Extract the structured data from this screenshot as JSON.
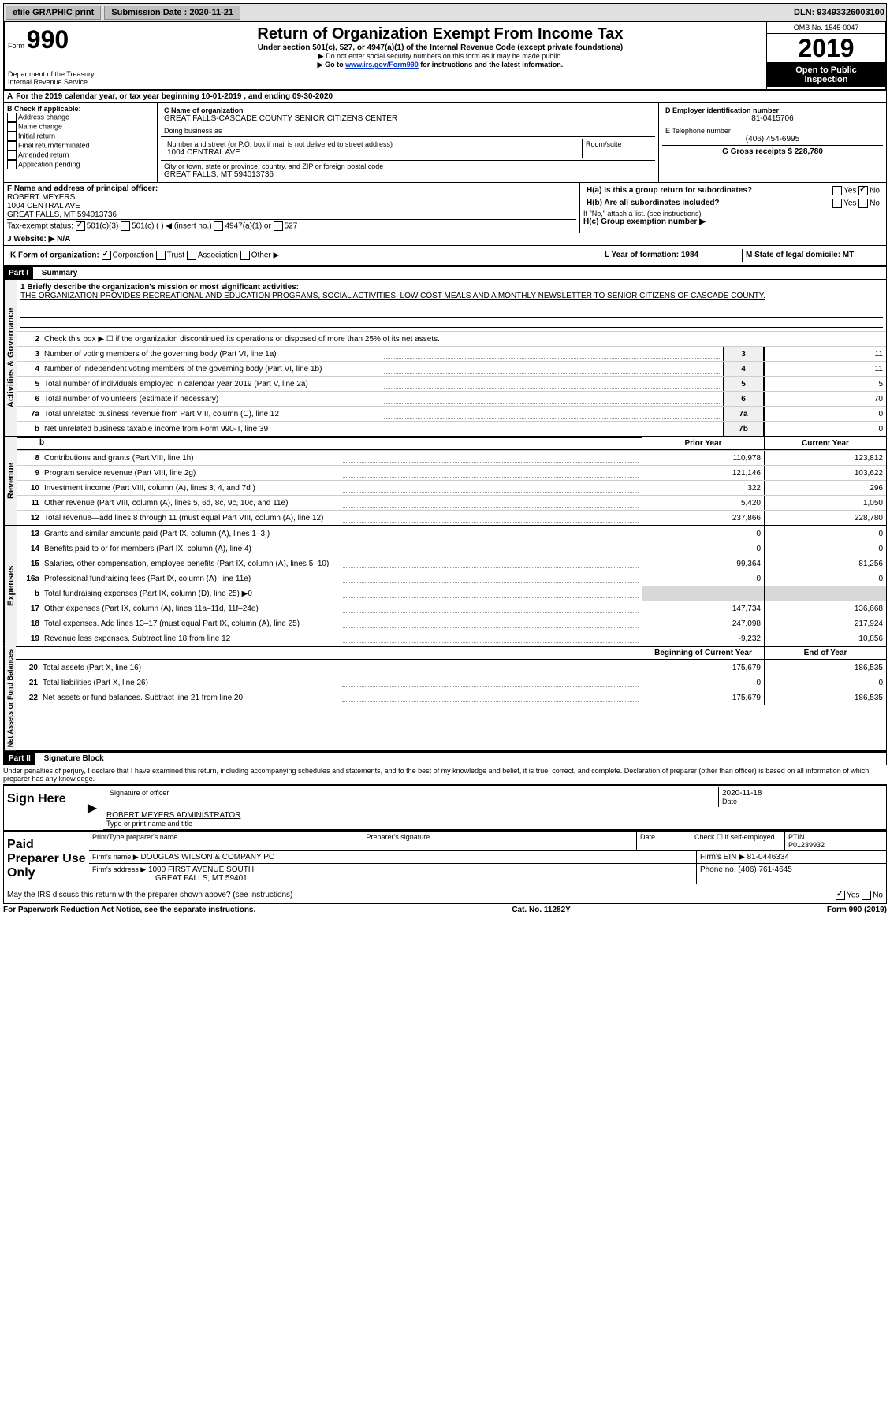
{
  "topbar": {
    "efile_label": "efile GRAPHIC print",
    "submission_label": "Submission Date : 2020-11-21",
    "dln_label": "DLN: 93493326003100"
  },
  "header": {
    "form_prefix": "Form",
    "form_number": "990",
    "dept": "Department of the Treasury",
    "irs": "Internal Revenue Service",
    "title": "Return of Organization Exempt From Income Tax",
    "subtitle": "Under section 501(c), 527, or 4947(a)(1) of the Internal Revenue Code (except private foundations)",
    "note1": "Do not enter social security numbers on this form as it may be made public.",
    "note2_prefix": "Go to ",
    "note2_link": "www.irs.gov/Form990",
    "note2_suffix": " for instructions and the latest information.",
    "omb": "OMB No. 1545-0047",
    "year": "2019",
    "public1": "Open to Public",
    "public2": "Inspection"
  },
  "section_a": {
    "line": "For the 2019 calendar year, or tax year beginning 10-01-2019    , and ending 09-30-2020"
  },
  "box_b": {
    "title": "B Check if applicable:",
    "items": [
      "Address change",
      "Name change",
      "Initial return",
      "Final return/terminated",
      "Amended return",
      "Application pending"
    ]
  },
  "box_c": {
    "name_label": "C Name of organization",
    "name": "GREAT FALLS-CASCADE COUNTY SENIOR CITIZENS CENTER",
    "dba_label": "Doing business as",
    "addr_label": "Number and street (or P.O. box if mail is not delivered to street address)",
    "room_label": "Room/suite",
    "addr": "1004 CENTRAL AVE",
    "city_label": "City or town, state or province, country, and ZIP or foreign postal code",
    "city": "GREAT FALLS, MT  594013736"
  },
  "box_d": {
    "ein_label": "D Employer identification number",
    "ein": "81-0415706",
    "phone_label": "E Telephone number",
    "phone": "(406) 454-6995",
    "gross_label": "G Gross receipts $ 228,780"
  },
  "box_f": {
    "label": "F  Name and address of principal officer:",
    "name": "ROBERT MEYERS",
    "addr1": "1004 CENTRAL AVE",
    "addr2": "GREAT FALLS, MT  594013736"
  },
  "box_h": {
    "ha_label": "H(a)  Is this a group return for subordinates?",
    "hb_label": "H(b)  Are all subordinates included?",
    "h_note": "If \"No,\" attach a list. (see instructions)",
    "hc_label": "H(c)  Group exemption number ▶",
    "yes": "Yes",
    "no": "No"
  },
  "box_i": {
    "label": "Tax-exempt status:",
    "opt1": "501(c)(3)",
    "opt2": "501(c) (  ) ◀ (insert no.)",
    "opt3": "4947(a)(1) or",
    "opt4": "527"
  },
  "box_j": {
    "label": "J   Website: ▶",
    "val": "N/A"
  },
  "box_k": {
    "label": "K Form of organization:",
    "opts": [
      "Corporation",
      "Trust",
      "Association",
      "Other ▶"
    ]
  },
  "box_l": {
    "label": "L Year of formation: 1984"
  },
  "box_m": {
    "label": "M State of legal domicile: MT"
  },
  "part1": {
    "header_part": "Part I",
    "header_title": "Summary",
    "line1_label": "1  Briefly describe the organization's mission or most significant activities:",
    "line1_text": "THE ORGANIZATION PROVIDES RECREATIONAL AND EDUCATION PROGRAMS, SOCIAL ACTIVITIES, LOW COST MEALS AND A MONTHLY NEWSLETTER TO SENIOR CITIZENS OF CASCADE COUNTY.",
    "line2": "Check this box ▶ ☐  if the organization discontinued its operations or disposed of more than 25% of its net assets.",
    "prior_year": "Prior Year",
    "current_year": "Current Year",
    "beg_year": "Beginning of Current Year",
    "end_year": "End of Year"
  },
  "activities_rows": [
    {
      "n": "3",
      "t": "Number of voting members of the governing body (Part VI, line 1a)",
      "c": "3",
      "v": "11"
    },
    {
      "n": "4",
      "t": "Number of independent voting members of the governing body (Part VI, line 1b)",
      "c": "4",
      "v": "11"
    },
    {
      "n": "5",
      "t": "Total number of individuals employed in calendar year 2019 (Part V, line 2a)",
      "c": "5",
      "v": "5"
    },
    {
      "n": "6",
      "t": "Total number of volunteers (estimate if necessary)",
      "c": "6",
      "v": "70"
    },
    {
      "n": "7a",
      "t": "Total unrelated business revenue from Part VIII, column (C), line 12",
      "c": "7a",
      "v": "0"
    },
    {
      "n": "b",
      "t": "Net unrelated business taxable income from Form 990-T, line 39",
      "c": "7b",
      "v": "0"
    }
  ],
  "revenue_rows": [
    {
      "n": "8",
      "t": "Contributions and grants (Part VIII, line 1h)",
      "p": "110,978",
      "c": "123,812"
    },
    {
      "n": "9",
      "t": "Program service revenue (Part VIII, line 2g)",
      "p": "121,146",
      "c": "103,622"
    },
    {
      "n": "10",
      "t": "Investment income (Part VIII, column (A), lines 3, 4, and 7d )",
      "p": "322",
      "c": "296"
    },
    {
      "n": "11",
      "t": "Other revenue (Part VIII, column (A), lines 5, 6d, 8c, 9c, 10c, and 11e)",
      "p": "5,420",
      "c": "1,050"
    },
    {
      "n": "12",
      "t": "Total revenue—add lines 8 through 11 (must equal Part VIII, column (A), line 12)",
      "p": "237,866",
      "c": "228,780"
    }
  ],
  "expense_rows": [
    {
      "n": "13",
      "t": "Grants and similar amounts paid (Part IX, column (A), lines 1–3 )",
      "p": "0",
      "c": "0"
    },
    {
      "n": "14",
      "t": "Benefits paid to or for members (Part IX, column (A), line 4)",
      "p": "0",
      "c": "0"
    },
    {
      "n": "15",
      "t": "Salaries, other compensation, employee benefits (Part IX, column (A), lines 5–10)",
      "p": "99,364",
      "c": "81,256"
    },
    {
      "n": "16a",
      "t": "Professional fundraising fees (Part IX, column (A), line 11e)",
      "p": "0",
      "c": "0"
    },
    {
      "n": "b",
      "t": "Total fundraising expenses (Part IX, column (D), line 25) ▶0",
      "p": "",
      "c": "",
      "shaded": true
    },
    {
      "n": "17",
      "t": "Other expenses (Part IX, column (A), lines 11a–11d, 11f–24e)",
      "p": "147,734",
      "c": "136,668"
    },
    {
      "n": "18",
      "t": "Total expenses. Add lines 13–17 (must equal Part IX, column (A), line 25)",
      "p": "247,098",
      "c": "217,924"
    },
    {
      "n": "19",
      "t": "Revenue less expenses. Subtract line 18 from line 12",
      "p": "-9,232",
      "c": "10,856"
    }
  ],
  "net_rows": [
    {
      "n": "20",
      "t": "Total assets (Part X, line 16)",
      "p": "175,679",
      "c": "186,535"
    },
    {
      "n": "21",
      "t": "Total liabilities (Part X, line 26)",
      "p": "0",
      "c": "0"
    },
    {
      "n": "22",
      "t": "Net assets or fund balances. Subtract line 21 from line 20",
      "p": "175,679",
      "c": "186,535"
    }
  ],
  "part2": {
    "header_part": "Part II",
    "header_title": "Signature Block",
    "penalty": "Under penalties of perjury, I declare that I have examined this return, including accompanying schedules and statements, and to the best of my knowledge and belief, it is true, correct, and complete. Declaration of preparer (other than officer) is based on all information of which preparer has any knowledge."
  },
  "sign": {
    "label": "Sign Here",
    "sig_of_officer": "Signature of officer",
    "date_label": "Date",
    "date": "2020-11-18",
    "name": "ROBERT MEYERS  ADMINISTRATOR",
    "typed": "Type or print name and title"
  },
  "preparer": {
    "label": "Paid Preparer Use Only",
    "col1": "Print/Type preparer's name",
    "col2": "Preparer's signature",
    "col3": "Date",
    "check_label": "Check ☐ if self-employed",
    "ptin_label": "PTIN",
    "ptin": "P01239932",
    "firm_name_label": "Firm's name     ▶",
    "firm_name": "DOUGLAS WILSON & COMPANY PC",
    "firm_ein_label": "Firm's EIN ▶ 81-0446334",
    "firm_addr_label": "Firm's address ▶",
    "firm_addr1": "1000 FIRST AVENUE SOUTH",
    "firm_addr2": "GREAT FALLS, MT  59401",
    "phone_label": "Phone no. (406) 761-4645",
    "discuss": "May the IRS discuss this return with the preparer shown above? (see instructions)",
    "yes": "Yes",
    "no": "No"
  },
  "footer": {
    "left": "For Paperwork Reduction Act Notice, see the separate instructions.",
    "mid": "Cat. No. 11282Y",
    "right": "Form 990 (2019)"
  },
  "vert_labels": {
    "activities": "Activities & Governance",
    "revenue": "Revenue",
    "expenses": "Expenses",
    "net": "Net Assets or Fund Balances"
  }
}
